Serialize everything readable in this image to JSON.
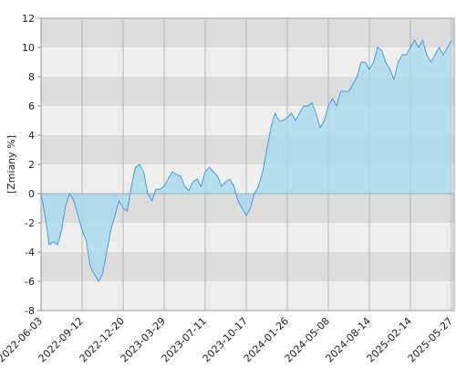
{
  "chart_data": {
    "type": "area",
    "ylabel": "[Zmiany %]",
    "categories": [
      "2022-06-03",
      null,
      null,
      null,
      null,
      null,
      null,
      null,
      null,
      null,
      "2022-09-12",
      null,
      null,
      null,
      null,
      null,
      null,
      null,
      null,
      null,
      "2022-12-20",
      null,
      null,
      null,
      null,
      null,
      null,
      null,
      null,
      null,
      "2023-03-29",
      null,
      null,
      null,
      null,
      null,
      null,
      null,
      null,
      null,
      "2023-07-11",
      null,
      null,
      null,
      null,
      null,
      null,
      null,
      null,
      null,
      "2023-10-17",
      null,
      null,
      null,
      null,
      null,
      null,
      null,
      null,
      null,
      "2024-01-26",
      null,
      null,
      null,
      null,
      null,
      null,
      null,
      null,
      null,
      "2024-05-08",
      null,
      null,
      null,
      null,
      null,
      null,
      null,
      null,
      null,
      "2024-08-14",
      null,
      null,
      null,
      null,
      null,
      null,
      null,
      null,
      null,
      "2025-02-14",
      null,
      null,
      null,
      null,
      null,
      null,
      null,
      null,
      null,
      "2025-05-27"
    ],
    "values": [
      0,
      -1.5,
      -3.5,
      -3.3,
      -3.5,
      -2.5,
      -0.8,
      0,
      -0.5,
      -1.5,
      -2.5,
      -3.2,
      -5,
      -5.5,
      -6,
      -5.5,
      -4,
      -2.5,
      -1.5,
      -0.5,
      -1,
      -1.2,
      0.5,
      1.8,
      2,
      1.5,
      0,
      -0.5,
      0.3,
      0.3,
      0.5,
      1,
      1.5,
      1.3,
      1.2,
      0.5,
      0.2,
      0.8,
      1,
      0.5,
      1.5,
      1.8,
      1.5,
      1.2,
      0.5,
      0.8,
      1,
      0.5,
      -0.5,
      -1,
      -1.5,
      -1,
      0,
      0.5,
      1.5,
      3,
      4.5,
      5.5,
      5,
      5,
      5.2,
      5.5,
      5,
      5.5,
      6,
      6,
      6.2,
      5.5,
      4.5,
      5,
      6,
      6.5,
      6,
      7,
      7,
      7,
      7.5,
      8,
      9,
      9,
      8.5,
      9,
      10,
      9.8,
      9,
      8.5,
      7.8,
      9,
      9.5,
      9.5,
      10,
      10.5,
      10,
      10.5,
      9.5,
      9,
      9.5,
      10,
      9.5,
      10,
      10.5
    ],
    "color": "#4a9be8",
    "fill": "#a9d9ec",
    "ylim": [
      -8,
      12
    ],
    "yticks": [
      -8,
      -6,
      -4,
      -2,
      0,
      2,
      4,
      6,
      8,
      10,
      12
    ],
    "grid": true
  }
}
